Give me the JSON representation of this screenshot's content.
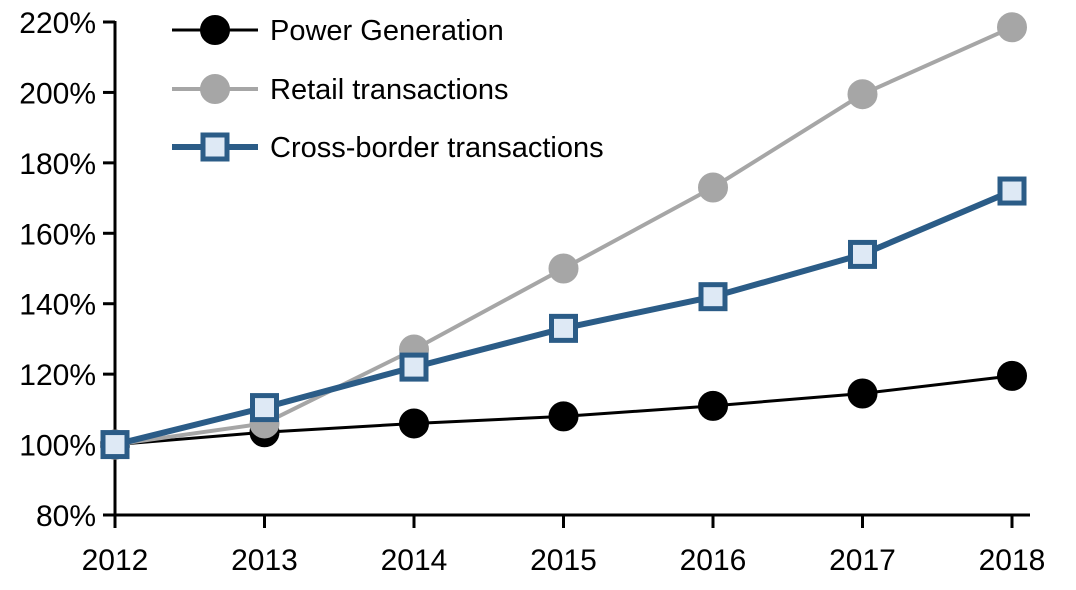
{
  "chart_data": {
    "type": "line",
    "title": "",
    "xlabel": "",
    "ylabel": "",
    "x": [
      2012,
      2013,
      2014,
      2015,
      2016,
      2017,
      2018
    ],
    "x_tick_labels": [
      "2012",
      "2013",
      "2014",
      "2015",
      "2016",
      "2017",
      "2018"
    ],
    "y_ticks": [
      80,
      100,
      120,
      140,
      160,
      180,
      200,
      220
    ],
    "y_tick_labels": [
      "80%",
      "100%",
      "120%",
      "140%",
      "160%",
      "180%",
      "200%",
      "220%"
    ],
    "ylim": [
      80,
      220
    ],
    "grid": false,
    "legend_position": "top-left-inside",
    "background_color": "#ffffff",
    "axis_color": "#000000",
    "series": [
      {
        "name": "Power Generation",
        "values": [
          100,
          103.5,
          106,
          108,
          111,
          114.5,
          119.5
        ],
        "color": "#000000",
        "marker": "circle",
        "marker_fill": "#000000",
        "marker_stroke": "#000000",
        "line_width": 3
      },
      {
        "name": "Retail transactions",
        "values": [
          100,
          106,
          127,
          150,
          173,
          199.5,
          218.5
        ],
        "color": "#a6a6a6",
        "marker": "circle",
        "marker_fill": "#a6a6a6",
        "marker_stroke": "#a6a6a6",
        "line_width": 4
      },
      {
        "name": "Cross-border transactions",
        "values": [
          100,
          110.5,
          122,
          133,
          142,
          154,
          172
        ],
        "color": "#2b5c87",
        "marker": "square",
        "marker_fill": "#dee9f5",
        "marker_stroke": "#2b5c87",
        "line_width": 6
      }
    ]
  }
}
